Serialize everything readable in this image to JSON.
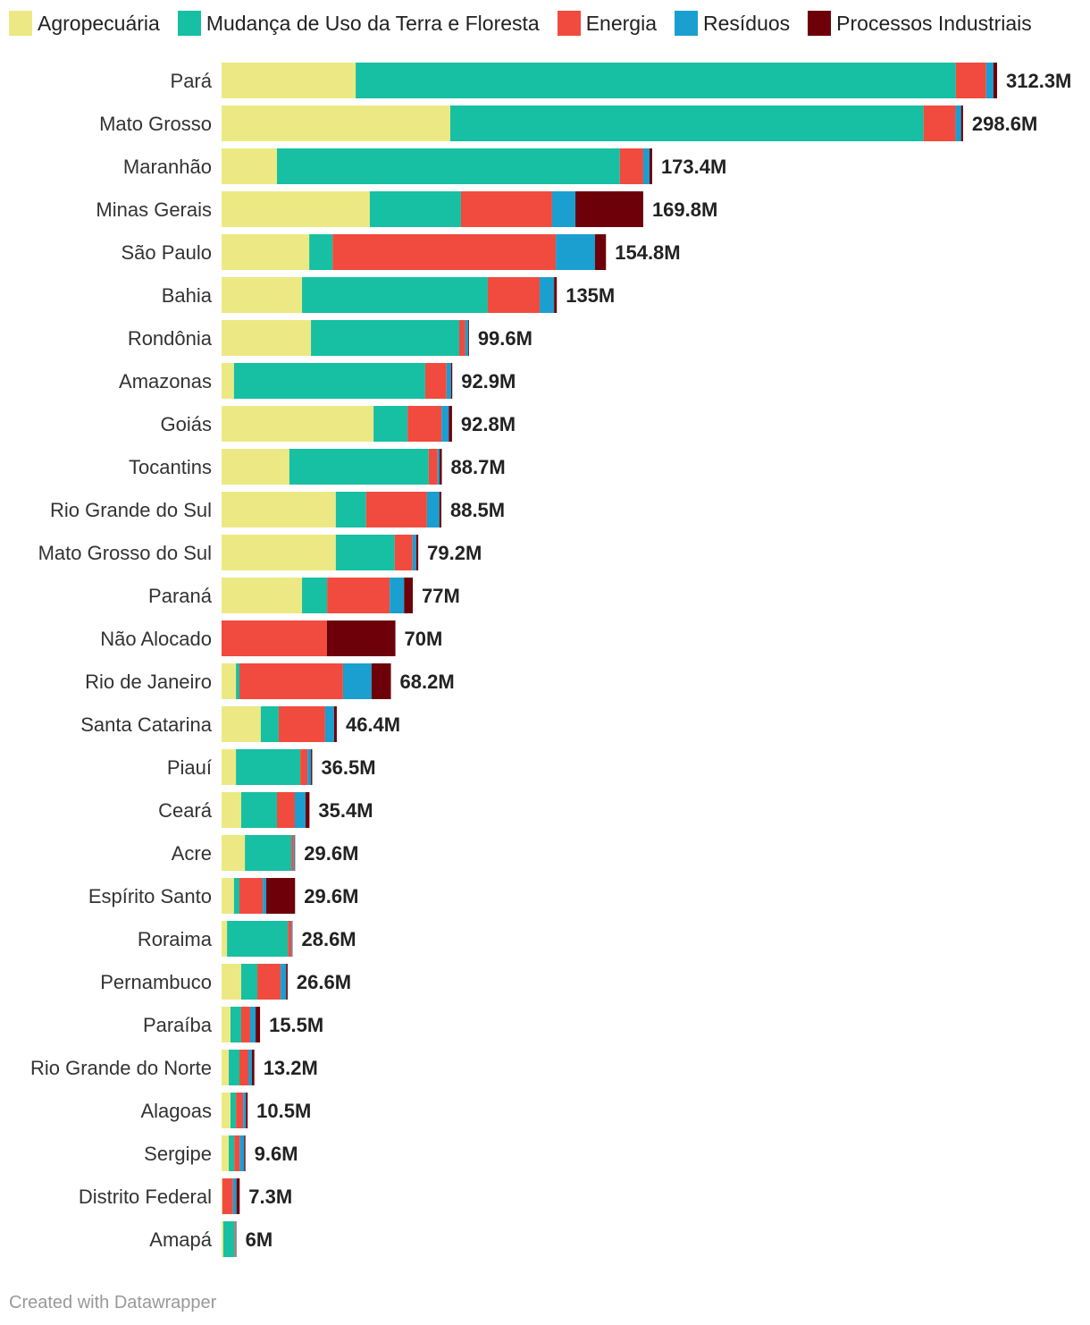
{
  "chart_data": {
    "type": "bar",
    "orientation": "horizontal",
    "stacked": true,
    "legend_position": "top",
    "series": [
      {
        "name": "Agropecuária",
        "color": "#ece984"
      },
      {
        "name": "Mudança de Uso da Terra e Floresta",
        "color": "#17bfa3"
      },
      {
        "name": "Energia",
        "color": "#f04b3e"
      },
      {
        "name": "Resíduos",
        "color": "#1a9fd0"
      },
      {
        "name": "Processos Industriais",
        "color": "#6d0009"
      }
    ],
    "rows": [
      {
        "label": "Pará",
        "total": "312.3M",
        "values": [
          54.0,
          241.7,
          12.2,
          2.9,
          1.5
        ]
      },
      {
        "label": "Mato Grosso",
        "total": "298.6M",
        "values": [
          92.1,
          190.6,
          12.9,
          2.2,
          0.8
        ]
      },
      {
        "label": "Maranhão",
        "total": "173.4M",
        "values": [
          22.3,
          138.1,
          9.4,
          2.5,
          1.1
        ]
      },
      {
        "label": "Minas Gerais",
        "total": "169.8M",
        "values": [
          59.7,
          36.7,
          36.7,
          9.4,
          27.3
        ]
      },
      {
        "label": "São Paulo",
        "total": "154.8M",
        "values": [
          35.3,
          9.4,
          89.9,
          15.8,
          4.4
        ]
      },
      {
        "label": "Bahia",
        "total": "135M",
        "values": [
          32.4,
          74.8,
          20.9,
          5.8,
          1.1
        ]
      },
      {
        "label": "Rondônia",
        "total": "99.6M",
        "values": [
          36.0,
          59.7,
          2.5,
          1.1,
          0.3
        ]
      },
      {
        "label": "Amazonas",
        "total": "92.9M",
        "values": [
          5.0,
          77.0,
          8.6,
          1.8,
          0.5
        ]
      },
      {
        "label": "Goiás",
        "total": "92.8M",
        "values": [
          61.2,
          13.7,
          13.7,
          2.9,
          1.3
        ]
      },
      {
        "label": "Tocantins",
        "total": "88.7M",
        "values": [
          27.3,
          56.1,
          3.6,
          0.8,
          0.9
        ]
      },
      {
        "label": "Rio Grande do Sul",
        "total": "88.5M",
        "values": [
          46.0,
          12.2,
          24.5,
          5.0,
          0.8
        ]
      },
      {
        "label": "Mato Grosso do Sul",
        "total": "79.2M",
        "values": [
          46.0,
          23.7,
          7.2,
          1.5,
          0.8
        ]
      },
      {
        "label": "Paraná",
        "total": "77M",
        "values": [
          32.4,
          10.1,
          25.2,
          5.8,
          3.5
        ]
      },
      {
        "label": "Não Alocado",
        "total": "70M",
        "values": [
          0,
          0,
          42.4,
          0,
          27.6
        ]
      },
      {
        "label": "Rio de Janeiro",
        "total": "68.2M",
        "values": [
          5.8,
          1.4,
          41.7,
          11.5,
          7.8
        ]
      },
      {
        "label": "Santa Catarina",
        "total": "46.4M",
        "values": [
          15.8,
          7.2,
          18.7,
          3.6,
          1.1
        ]
      },
      {
        "label": "Piauí",
        "total": "36.5M",
        "values": [
          5.8,
          25.9,
          2.9,
          1.4,
          0.5
        ]
      },
      {
        "label": "Ceará",
        "total": "35.4M",
        "values": [
          7.9,
          14.4,
          7.2,
          4.3,
          1.6
        ]
      },
      {
        "label": "Acre",
        "total": "29.6M",
        "values": [
          9.4,
          18.7,
          0.8,
          0.5,
          0.2
        ]
      },
      {
        "label": "Espírito Santo",
        "total": "29.6M",
        "values": [
          5.0,
          2.2,
          9.4,
          1.4,
          11.6
        ]
      },
      {
        "label": "Roraima",
        "total": "28.6M",
        "values": [
          2.2,
          24.5,
          1.4,
          0.4,
          0.1
        ]
      },
      {
        "label": "Pernambuco",
        "total": "26.6M",
        "values": [
          7.9,
          6.5,
          9.4,
          2.2,
          0.6
        ]
      },
      {
        "label": "Paraíba",
        "total": "15.5M",
        "values": [
          3.6,
          4.3,
          3.6,
          2.2,
          1.8
        ]
      },
      {
        "label": "Rio Grande do Norte",
        "total": "13.2M",
        "values": [
          2.9,
          4.3,
          3.6,
          1.4,
          1.0
        ]
      },
      {
        "label": "Alagoas",
        "total": "10.5M",
        "values": [
          3.6,
          2.2,
          2.9,
          1.1,
          0.7
        ]
      },
      {
        "label": "Sergipe",
        "total": "9.6M",
        "values": [
          2.9,
          2.2,
          2.2,
          1.8,
          0.5
        ]
      },
      {
        "label": "Distrito Federal",
        "total": "7.3M",
        "values": [
          0.3,
          0,
          4.3,
          1.4,
          1.3
        ]
      },
      {
        "label": "Amapá",
        "total": "6M",
        "values": [
          0.7,
          4.6,
          0.4,
          0.2,
          0.1
        ]
      }
    ],
    "xlim": [
      0,
      312.3
    ],
    "grid": false
  },
  "footer": "Created with Datawrapper"
}
